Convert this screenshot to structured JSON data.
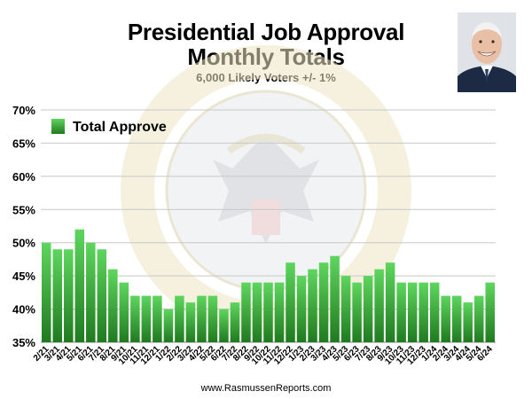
{
  "title_line1": "Presidential Job Approval",
  "title_line2": "Monthly Totals",
  "subtitle": "6,000 Likely Voters +/- 1%",
  "source": "www.RasmussenReports.com",
  "colors": {
    "bar_light": "#5ed65e",
    "bar_dark": "#1f7a1f",
    "grid": "#c8c8c8",
    "seal": "#e6dfc4"
  },
  "chart_data": {
    "type": "bar",
    "title": "Presidential Job Approval Monthly Totals",
    "subtitle": "6,000 Likely Voters +/- 1%",
    "legend": {
      "position": "top-left",
      "entries": [
        "Total Approve"
      ]
    },
    "grid": true,
    "ylim": [
      35,
      70
    ],
    "yticks": [
      "35%",
      "40%",
      "45%",
      "50%",
      "55%",
      "60%",
      "65%",
      "70%"
    ],
    "ytick_values": [
      35,
      40,
      45,
      50,
      55,
      60,
      65,
      70
    ],
    "categories": [
      "2/21",
      "3/21",
      "4/21",
      "5/21",
      "6/21",
      "7/21",
      "8/21",
      "9/21",
      "10/21",
      "11/21",
      "12/21",
      "1/22",
      "2/22",
      "3/22",
      "4/22",
      "5/22",
      "6/22",
      "7/22",
      "8/22",
      "9/22",
      "10/22",
      "11/22",
      "12/22",
      "1/23",
      "2/23",
      "3/23",
      "4/23",
      "5/23",
      "6/23",
      "7/23",
      "8/23",
      "9/23",
      "10/23",
      "11/23",
      "12/23",
      "1/24",
      "2/24",
      "3/24",
      "4/24",
      "5/24",
      "6/24"
    ],
    "series": [
      {
        "name": "Total Approve",
        "values": [
          50,
          49,
          49,
          52,
          50,
          49,
          46,
          44,
          42,
          42,
          42,
          40,
          42,
          41,
          42,
          42,
          40,
          41,
          44,
          44,
          44,
          44,
          47,
          45,
          46,
          47,
          48,
          45,
          44,
          45,
          46,
          47,
          44,
          44,
          44,
          44,
          42,
          42,
          41,
          42,
          44
        ]
      }
    ]
  }
}
